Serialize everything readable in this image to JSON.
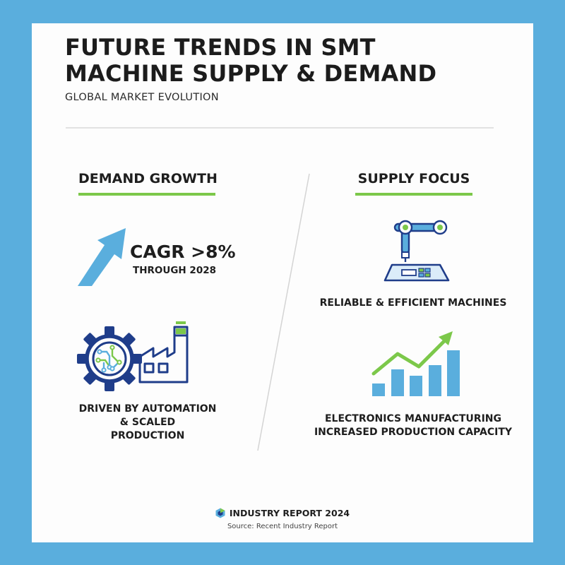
{
  "header": {
    "title_line1": "FUTURE TRENDS IN SMT",
    "title_line2": "MACHINE SUPPLY & DEMAND",
    "subtitle": "GLOBAL MARKET EVOLUTION"
  },
  "demand": {
    "heading": "DEMAND GROWTH",
    "cagr_value": "CAGR >8%",
    "cagr_period": "THROUGH 2028",
    "driver_line1": "DRIVEN BY AUTOMATION",
    "driver_line2": "& SCALED",
    "driver_line3": "PRODUCTION",
    "icons": [
      "growth-arrow-icon",
      "gear-circuit-icon",
      "factory-icon"
    ]
  },
  "supply": {
    "heading": "SUPPLY FOCUS",
    "machines_label": "RELIABLE & EFFICIENT MACHINES",
    "capacity_line1": "ELECTRONICS MANUFACTURING",
    "capacity_line2": "INCREASED PRODUCTION CAPACITY",
    "icons": [
      "robotic-arm-icon",
      "bar-growth-chart-icon"
    ]
  },
  "footer": {
    "report": "INDUSTRY REPORT 2024",
    "source": "Source: Recent Industry Report",
    "icon": "hexagon-logo-icon"
  },
  "colors": {
    "background": "#5aaedd",
    "accent_green": "#7cc84a",
    "accent_blue": "#5aaedd",
    "navy": "#1f3d8a"
  }
}
